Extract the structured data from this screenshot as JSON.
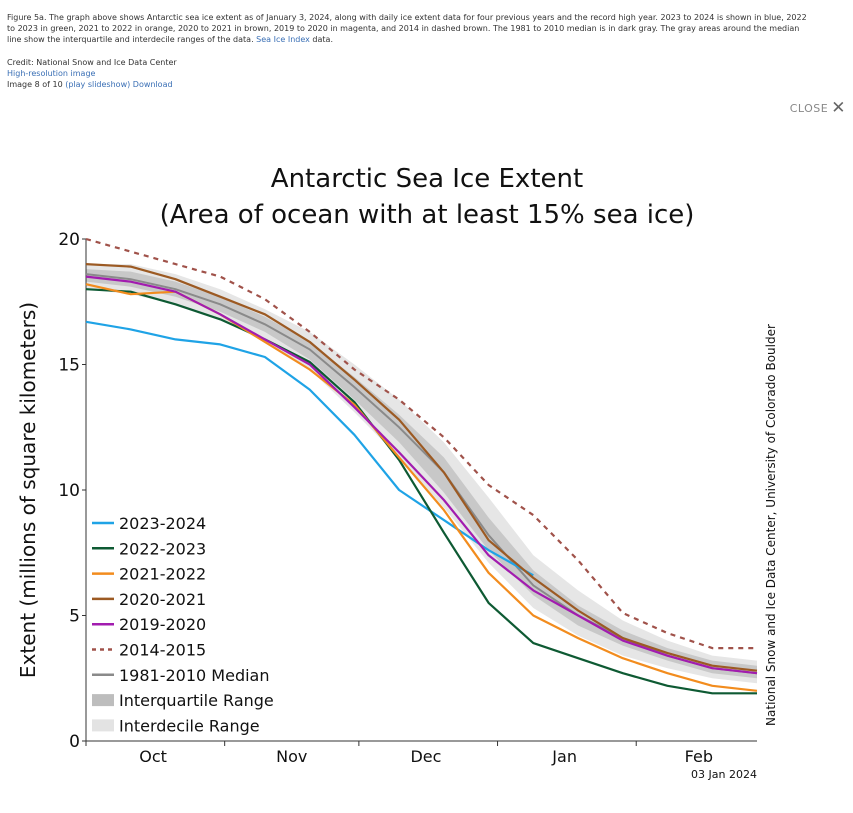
{
  "caption": {
    "text": "Figure 5a. The graph above shows Antarctic sea ice extent as of January 3, 2024, along with daily ice extent data for four previous years and the record high year. 2023 to 2024 is shown in blue, 2022 to 2023 in green, 2021 to 2022 in orange, 2020 to 2021 in brown, 2019 to 2020 in magenta, and 2014 in dashed brown. The 1981 to 2010 median is in dark gray. The gray areas around the median line show the interquartile and interdecile ranges of the data.",
    "link_label": "Sea Ice Index",
    "tail": " data."
  },
  "credit": {
    "line": "Credit: National Snow and Ice Data Center",
    "hires_label": "High-resolution image",
    "image_counter": "Image 8 of 10",
    "slideshow_label": "(play slideshow)",
    "download_label": "Download"
  },
  "close": {
    "label": "CLOSE",
    "icon": "close-icon"
  },
  "chart_data": {
    "type": "line",
    "title": "Antarctic Sea Ice Extent",
    "subtitle": "(Area of ocean with at least 15% sea ice)",
    "xlabel": "",
    "ylabel": "Extent (millions of square kilometers)",
    "ylim": [
      0,
      20
    ],
    "yticks": [
      0,
      5,
      10,
      15,
      20
    ],
    "xlim_days": [
      0,
      150
    ],
    "xtick_days": [
      0,
      31,
      61,
      92,
      123
    ],
    "xtick_labels": [
      {
        "day": 15,
        "label": "Oct"
      },
      {
        "day": 46,
        "label": "Nov"
      },
      {
        "day": 76,
        "label": "Dec"
      },
      {
        "day": 107,
        "label": "Jan"
      },
      {
        "day": 137,
        "label": "Feb"
      }
    ],
    "date_stamp": "03 Jan 2024",
    "side_credit": "National Snow and Ice Data Center, University of Colorado Boulder",
    "legend_position": "lower-left",
    "x": [
      0,
      10,
      20,
      30,
      40,
      50,
      60,
      70,
      80,
      90,
      100,
      110,
      120,
      130,
      140,
      150
    ],
    "median": [
      18.6,
      18.4,
      18.0,
      17.4,
      16.6,
      15.6,
      14.1,
      12.5,
      10.7,
      8.2,
      6.2,
      5.0,
      4.1,
      3.4,
      2.9,
      2.7
    ],
    "interquartile": {
      "low": [
        18.3,
        18.1,
        17.7,
        17.1,
        16.3,
        15.2,
        13.6,
        11.9,
        9.9,
        7.6,
        5.8,
        4.6,
        3.8,
        3.2,
        2.7,
        2.5
      ],
      "high": [
        18.8,
        18.7,
        18.3,
        17.7,
        16.9,
        15.9,
        14.5,
        13.0,
        11.3,
        8.9,
        6.8,
        5.4,
        4.4,
        3.7,
        3.2,
        3.0
      ]
    },
    "interdecile": {
      "low": [
        18.0,
        17.8,
        17.4,
        16.8,
        15.9,
        14.8,
        13.1,
        11.3,
        9.3,
        7.1,
        5.3,
        4.2,
        3.4,
        2.9,
        2.5,
        2.3
      ],
      "high": [
        19.0,
        19.0,
        18.6,
        18.0,
        17.2,
        16.3,
        15.0,
        13.6,
        11.9,
        9.7,
        7.4,
        6.0,
        4.8,
        4.0,
        3.4,
        3.2
      ]
    },
    "series": [
      {
        "name": "2023-2024",
        "color": "#1fa3e6",
        "dashed": false,
        "values": [
          16.7,
          16.4,
          16.0,
          15.8,
          15.3,
          14.0,
          12.2,
          10.0,
          8.8,
          7.6,
          6.6,
          null,
          null,
          null,
          null,
          null
        ]
      },
      {
        "name": "2022-2023",
        "color": "#0e5a33",
        "dashed": false,
        "values": [
          18.0,
          17.9,
          17.4,
          16.8,
          16.0,
          15.1,
          13.5,
          11.2,
          8.3,
          5.5,
          3.9,
          3.3,
          2.7,
          2.2,
          1.9,
          1.9
        ]
      },
      {
        "name": "2021-2022",
        "color": "#f28c1e",
        "dashed": false,
        "values": [
          18.2,
          17.8,
          17.9,
          17.0,
          15.9,
          14.8,
          13.4,
          11.3,
          9.2,
          6.7,
          5.0,
          4.1,
          3.3,
          2.7,
          2.2,
          2.0
        ]
      },
      {
        "name": "2020-2021",
        "color": "#9c5a23",
        "dashed": false,
        "values": [
          19.0,
          18.9,
          18.4,
          17.7,
          17.0,
          15.9,
          14.4,
          12.8,
          10.7,
          8.0,
          6.5,
          5.2,
          4.1,
          3.5,
          3.0,
          2.8
        ]
      },
      {
        "name": "2019-2020",
        "color": "#a21caf",
        "dashed": false,
        "values": [
          18.5,
          18.3,
          17.9,
          17.0,
          16.0,
          15.0,
          13.3,
          11.5,
          9.6,
          7.4,
          6.0,
          5.0,
          4.0,
          3.4,
          2.9,
          2.7
        ]
      },
      {
        "name": "2014-2015",
        "color": "#a0524a",
        "dashed": true,
        "values": [
          20.0,
          19.5,
          19.0,
          18.5,
          17.6,
          16.3,
          14.8,
          13.6,
          12.1,
          10.2,
          9.0,
          7.2,
          5.1,
          4.3,
          3.7,
          3.7
        ]
      }
    ],
    "legend": [
      {
        "label": "2023-2024",
        "kind": "line",
        "color": "#1fa3e6"
      },
      {
        "label": "2022-2023",
        "kind": "line",
        "color": "#0e5a33"
      },
      {
        "label": "2021-2022",
        "kind": "line",
        "color": "#f28c1e"
      },
      {
        "label": "2020-2021",
        "kind": "line",
        "color": "#9c5a23"
      },
      {
        "label": "2019-2020",
        "kind": "line",
        "color": "#a21caf"
      },
      {
        "label": "2014-2015",
        "kind": "dashed",
        "color": "#a0524a"
      },
      {
        "label": "1981-2010 Median",
        "kind": "line",
        "color": "#8a8a8a"
      },
      {
        "label": "Interquartile Range",
        "kind": "band",
        "color": "#bdbdbd"
      },
      {
        "label": "Interdecile Range",
        "kind": "band",
        "color": "#e3e3e3"
      }
    ]
  }
}
